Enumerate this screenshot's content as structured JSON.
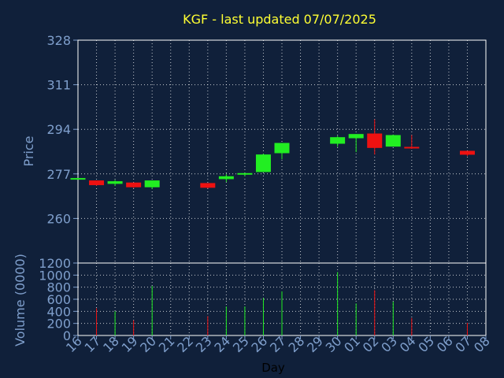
{
  "chart_data": {
    "type": "candlestick",
    "title": "KGF - last updated 07/07/2025",
    "xlabel": "Day",
    "ylabel_price": "Price",
    "ylabel_volume": "Volume (0000)",
    "x_ticks": [
      "16",
      "17",
      "18",
      "19",
      "20",
      "21",
      "22",
      "23",
      "24",
      "25",
      "26",
      "27",
      "28",
      "29",
      "30",
      "01",
      "02",
      "03",
      "04",
      "05",
      "06",
      "07",
      "08"
    ],
    "price_ticks": [
      260,
      277,
      294,
      311,
      328
    ],
    "price_ylim": [
      243,
      328
    ],
    "volume_ticks": [
      0,
      200,
      400,
      600,
      800,
      1000,
      1200
    ],
    "volume_ylim": [
      0,
      1200
    ],
    "grid": true,
    "colors": {
      "background": "#10203a",
      "up": "#22ee22",
      "down": "#ee1111",
      "title": "#ffff33",
      "axis_text": "#7f9fcc",
      "frame": "#ffffff",
      "grid": "#ffffff"
    },
    "candles": [
      {
        "day": "16",
        "open": 275.2,
        "high": 275.4,
        "low": 275.0,
        "close": 275.4,
        "volume": 0
      },
      {
        "day": "17",
        "open": 274.5,
        "high": 274.5,
        "low": 272.5,
        "close": 272.7,
        "volume": 450
      },
      {
        "day": "18",
        "open": 273.2,
        "high": 274.7,
        "low": 272.4,
        "close": 274.2,
        "volume": 400
      },
      {
        "day": "19",
        "open": 273.7,
        "high": 273.7,
        "low": 271.6,
        "close": 271.9,
        "volume": 250
      },
      {
        "day": "20",
        "open": 271.9,
        "high": 274.5,
        "low": 271.2,
        "close": 274.5,
        "volume": 820
      },
      {
        "day": "23",
        "open": 273.5,
        "high": 273.5,
        "low": 271.5,
        "close": 271.7,
        "volume": 320
      },
      {
        "day": "24",
        "open": 275.0,
        "high": 276.9,
        "low": 273.9,
        "close": 276.1,
        "volume": 480
      },
      {
        "day": "25",
        "open": 276.8,
        "high": 277.3,
        "low": 276.1,
        "close": 277.3,
        "volume": 480
      },
      {
        "day": "26",
        "open": 277.7,
        "high": 284.7,
        "low": 277.7,
        "close": 284.4,
        "volume": 620
      },
      {
        "day": "27",
        "open": 284.9,
        "high": 288.8,
        "low": 282.6,
        "close": 288.8,
        "volume": 730
      },
      {
        "day": "30",
        "open": 288.5,
        "high": 291.5,
        "low": 287.3,
        "close": 291.0,
        "volume": 1050
      },
      {
        "day": "01",
        "open": 290.6,
        "high": 292.2,
        "low": 285.3,
        "close": 292.2,
        "volume": 530
      },
      {
        "day": "02",
        "open": 292.4,
        "high": 297.8,
        "low": 284.4,
        "close": 286.9,
        "volume": 750
      },
      {
        "day": "03",
        "open": 287.4,
        "high": 292.0,
        "low": 287.4,
        "close": 291.8,
        "volume": 560
      },
      {
        "day": "04",
        "open": 287.3,
        "high": 291.8,
        "low": 286.5,
        "close": 286.7,
        "volume": 290
      },
      {
        "day": "07",
        "open": 285.8,
        "high": 285.8,
        "low": 283.8,
        "close": 284.3,
        "volume": 210
      }
    ]
  }
}
